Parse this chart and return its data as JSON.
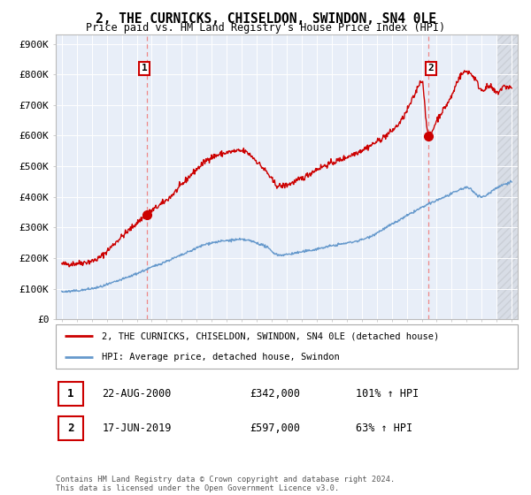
{
  "title": "2, THE CURNICKS, CHISELDON, SWINDON, SN4 0LE",
  "subtitle": "Price paid vs. HM Land Registry's House Price Index (HPI)",
  "legend_line1": "2, THE CURNICKS, CHISELDON, SWINDON, SN4 0LE (detached house)",
  "legend_line2": "HPI: Average price, detached house, Swindon",
  "transaction1_date": "22-AUG-2000",
  "transaction1_price": "£342,000",
  "transaction1_hpi": "101% ↑ HPI",
  "transaction2_date": "17-JUN-2019",
  "transaction2_price": "£597,000",
  "transaction2_hpi": "63% ↑ HPI",
  "footnote": "Contains HM Land Registry data © Crown copyright and database right 2024.\nThis data is licensed under the Open Government Licence v3.0.",
  "red_color": "#cc0000",
  "blue_color": "#6699cc",
  "dashed_red": "#ee8888",
  "chart_bg": "#e8eef8",
  "marker1_x": 2000.65,
  "marker1_y": 342000,
  "marker2_x": 2019.46,
  "marker2_y": 597000,
  "ylim": [
    0,
    930000
  ],
  "xlim_start": 1994.6,
  "xlim_end": 2025.4
}
